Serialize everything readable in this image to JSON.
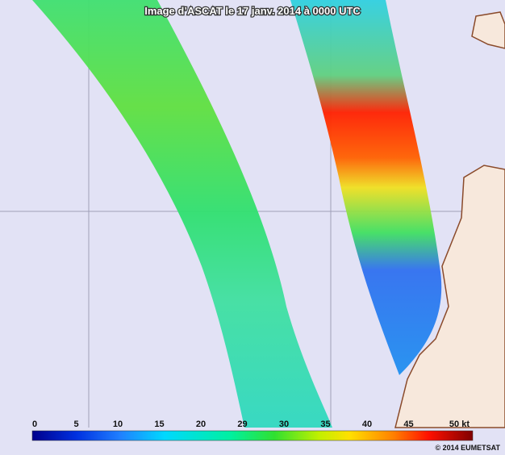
{
  "map": {
    "title": "Image d’ASCAT le 17 janv. 2014 à 0000 UTC",
    "legend": {
      "ticks": [
        "0",
        "5",
        "10",
        "15",
        "20",
        "29",
        "30",
        "35",
        "40",
        "45",
        "50 kt"
      ]
    },
    "credit": "© 2014 EUMETSAT"
  }
}
